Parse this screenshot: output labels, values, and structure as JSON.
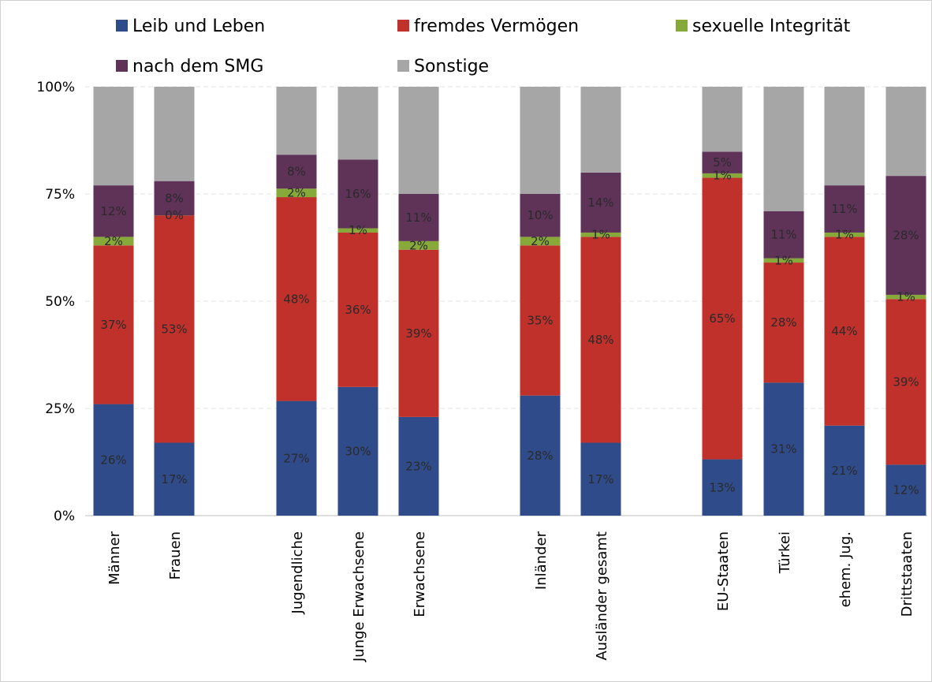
{
  "chart_data": {
    "type": "bar",
    "stacked": true,
    "percent": true,
    "title": "",
    "xlabel": "",
    "ylabel": "",
    "ylim": [
      0,
      100
    ],
    "yticks": [
      "0%",
      "25%",
      "50%",
      "75%",
      "100%"
    ],
    "grid": true,
    "legend_position": "top",
    "categories": [
      "Männer",
      "Frauen",
      "Jugendliche",
      "Junge Erwachsene",
      "Erwachsene",
      "Inländer",
      "Ausländer gesamt",
      "EU-Staaten",
      "Türkei",
      "ehem. Jug.",
      "Drittstaaten"
    ],
    "groups": [
      [
        "Männer",
        "Frauen"
      ],
      [
        "Jugendliche",
        "Junge Erwachsene",
        "Erwachsene"
      ],
      [
        "Inländer",
        "Ausländer gesamt"
      ],
      [
        "EU-Staaten",
        "Türkei",
        "ehem. Jug.",
        "Drittstaaten"
      ]
    ],
    "series": [
      {
        "name": "Leib und Leben",
        "color": "#2f4b8a",
        "values": [
          26,
          17,
          27,
          30,
          23,
          28,
          17,
          13,
          31,
          21,
          12
        ],
        "labels": [
          "26%",
          "17%",
          "27%",
          "30%",
          "23%",
          "28%",
          "17%",
          "13%",
          "31%",
          "21%",
          "12%"
        ]
      },
      {
        "name": "fremdes Vermögen",
        "color": "#c0312b",
        "values": [
          37,
          53,
          48,
          36,
          39,
          35,
          48,
          65,
          28,
          44,
          39
        ],
        "labels": [
          "37%",
          "53%",
          "48%",
          "36%",
          "39%",
          "35%",
          "48%",
          "65%",
          "28%",
          "44%",
          "39%"
        ]
      },
      {
        "name": "sexuelle Integrität",
        "color": "#86a93a",
        "values": [
          2,
          0,
          2,
          1,
          2,
          2,
          1,
          1,
          1,
          1,
          1
        ],
        "labels": [
          "2%",
          "0%",
          "2%",
          "1%",
          "2%",
          "2%",
          "1%",
          "1%",
          "1%",
          "1%",
          "1%"
        ]
      },
      {
        "name": "nach dem SMG",
        "color": "#5f3258",
        "values": [
          12,
          8,
          8,
          16,
          11,
          10,
          14,
          5,
          11,
          11,
          28
        ],
        "labels": [
          "12%",
          "8%",
          "8%",
          "16%",
          "11%",
          "10%",
          "14%",
          "5%",
          "11%",
          "11%",
          "28%"
        ]
      },
      {
        "name": "Sonstige",
        "color": "#a6a6a6",
        "values": [
          23,
          22,
          16,
          17,
          25,
          25,
          20,
          15,
          29,
          23,
          21
        ],
        "labels": [
          "",
          "",
          "",
          "",
          "",
          "",
          "",
          "",
          "",
          "",
          ""
        ]
      }
    ]
  }
}
